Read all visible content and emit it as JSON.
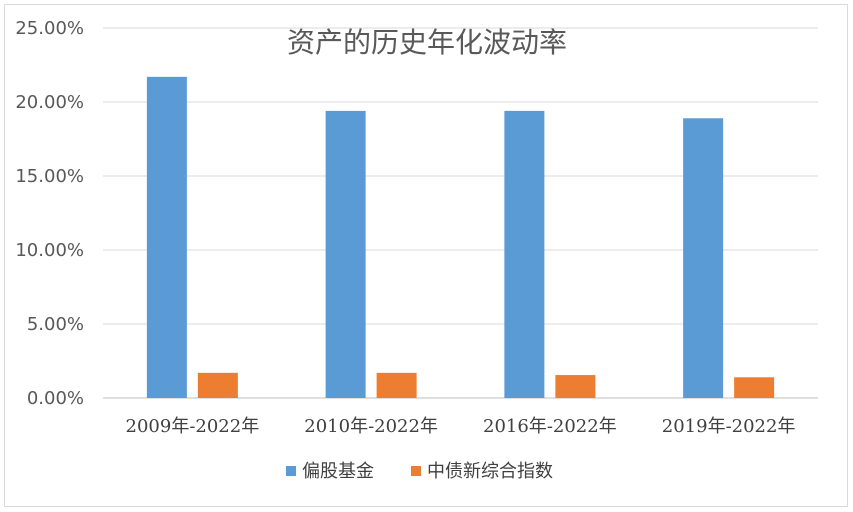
{
  "chart_data": {
    "type": "bar",
    "title": "资产的历史年化波动率",
    "xlabel": "",
    "ylabel": "",
    "categories": [
      "2009年-2022年",
      "2010年-2022年",
      "2016年-2022年",
      "2019年-2022年"
    ],
    "series": [
      {
        "name": "偏股基金",
        "color": "#5B9BD5",
        "values": [
          21.7,
          19.4,
          19.4,
          18.9
        ]
      },
      {
        "name": "中债新综合指数",
        "color": "#ED7D31",
        "values": [
          1.7,
          1.7,
          1.55,
          1.4
        ]
      }
    ],
    "ylim": [
      0,
      25
    ],
    "yticks": [
      "0.00%",
      "5.00%",
      "10.00%",
      "15.00%",
      "20.00%",
      "25.00%"
    ],
    "grid": true,
    "legend_position": "bottom"
  }
}
